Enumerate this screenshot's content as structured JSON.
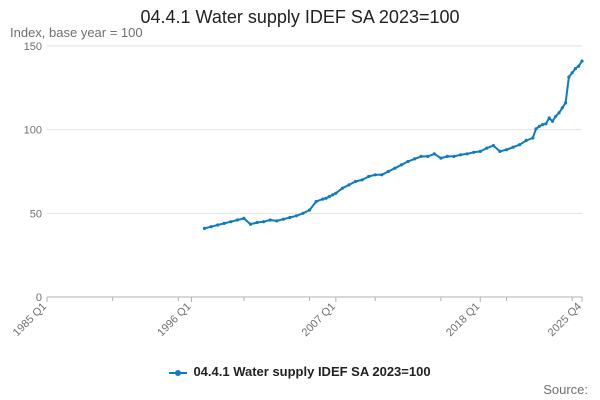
{
  "chart_data": {
    "type": "line",
    "title": "04.4.1 Water supply IDEF SA 2023=100",
    "ylabel": "Index, base year = 100",
    "xlabel": "",
    "ylim": [
      0,
      150
    ],
    "yticks": [
      0,
      50,
      100,
      150
    ],
    "xlim": [
      "1985 Q1",
      "2025 Q4"
    ],
    "xtick_labels": [
      "1985 Q1",
      "1996 Q1",
      "2007 Q1",
      "2018 Q1",
      "2025 Q4"
    ],
    "grid": true,
    "legend_position": "bottom-center",
    "color": "#0f7cbf",
    "series": [
      {
        "name": "04.4.1 Water supply IDEF SA 2023=100",
        "x": [
          "1997 Q1",
          "1997 Q3",
          "1998 Q1",
          "1998 Q3",
          "1999 Q1",
          "1999 Q3",
          "2000 Q1",
          "2000 Q3",
          "2001 Q1",
          "2001 Q3",
          "2002 Q1",
          "2002 Q3",
          "2003 Q1",
          "2003 Q3",
          "2004 Q1",
          "2004 Q3",
          "2005 Q1",
          "2005 Q3",
          "2006 Q1",
          "2006 Q2",
          "2006 Q3",
          "2006 Q4",
          "2007 Q1",
          "2007 Q3",
          "2008 Q1",
          "2008 Q3",
          "2009 Q1",
          "2009 Q3",
          "2010 Q1",
          "2010 Q3",
          "2011 Q1",
          "2011 Q3",
          "2012 Q1",
          "2012 Q3",
          "2013 Q1",
          "2013 Q3",
          "2014 Q1",
          "2014 Q3",
          "2015 Q1",
          "2015 Q3",
          "2016 Q1",
          "2016 Q3",
          "2017 Q1",
          "2017 Q3",
          "2018 Q1",
          "2018 Q3",
          "2019 Q1",
          "2019 Q3",
          "2020 Q1",
          "2020 Q3",
          "2021 Q1",
          "2021 Q3",
          "2022 Q1",
          "2022 Q2",
          "2022 Q3",
          "2022 Q4",
          "2023 Q1",
          "2023 Q2",
          "2023 Q3",
          "2023 Q4",
          "2024 Q1",
          "2024 Q2",
          "2024 Q3",
          "2024 Q4",
          "2025 Q1",
          "2025 Q2",
          "2025 Q3",
          "2025 Q4"
        ],
        "y": [
          41,
          42,
          43,
          44,
          45,
          46,
          47,
          43.5,
          44.5,
          45,
          46,
          45.5,
          46.5,
          47.5,
          48.5,
          50,
          52,
          57,
          58.5,
          59,
          60,
          61,
          62,
          65,
          67,
          69,
          70,
          72,
          73,
          73,
          75,
          77,
          79,
          81,
          82.5,
          84,
          84,
          85.5,
          83,
          84,
          84,
          85,
          85.5,
          86.5,
          87,
          89,
          90.5,
          87,
          88,
          89.5,
          91,
          93.5,
          95,
          100.5,
          102,
          103,
          103.5,
          107,
          105,
          108,
          110,
          113,
          116,
          131.5,
          134,
          136.5,
          138,
          141
        ]
      }
    ]
  },
  "legend_label": "04.4.1 Water supply IDEF SA 2023=100",
  "source_label": "Source:"
}
